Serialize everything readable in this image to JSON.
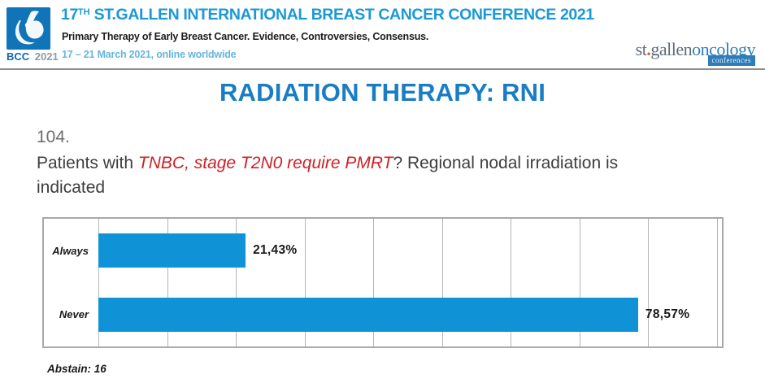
{
  "header": {
    "logo": {
      "bcc": "BCC",
      "year": "2021"
    },
    "title_prefix": "17",
    "title_superscript": "TH",
    "title_rest": " ST.GALLEN INTERNATIONAL BREAST CANCER CONFERENCE 2021",
    "subtitle": "Primary Therapy of Early Breast Cancer. Evidence, Controversies, Consensus.",
    "dates": "17 – 21 March 2021, online worldwide",
    "brand": {
      "st": "st",
      "dot": ".",
      "gallen": "gallen",
      "oncology": "oncology",
      "conferences": "conferences"
    }
  },
  "slide": {
    "title": "RADIATION THERAPY: RNI",
    "question_number": "104.",
    "question_prefix": "Patients with ",
    "question_highlight": "TNBC, stage T2N0 require PMRT",
    "question_suffix": "? Regional nodal irradiation is indicated",
    "abstain_note": "Abstain: 16"
  },
  "chart_data": {
    "type": "bar",
    "orientation": "horizontal",
    "categories": [
      "Always",
      "Never"
    ],
    "values": [
      21.43,
      78.57
    ],
    "value_labels": [
      "21,43%",
      "78,57%"
    ],
    "xlim": [
      0,
      91
    ],
    "gridlines_every_percent": 10,
    "grid": true,
    "legend": "none",
    "abstain": 16,
    "bar_color": "#0f93d6"
  },
  "colors": {
    "conference_title_blue": "#1b99d5",
    "dates_blue": "#66b5dd",
    "slide_title_blue": "#1a7dc4",
    "bar_blue": "#0f93d6",
    "logo_blue": "#1074b8",
    "highlight_red": "#cd2026",
    "brand_gray": "#5c6c7c",
    "brand_orange_dot": "#d95f27"
  }
}
